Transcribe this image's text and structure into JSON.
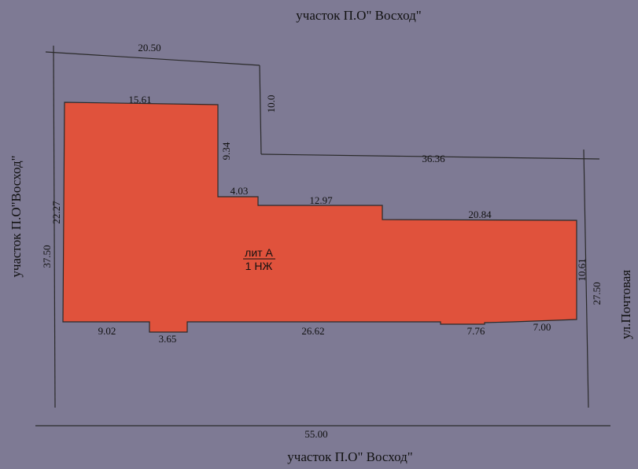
{
  "colors": {
    "background": "#7e7a94",
    "building_fill": "#e0523c",
    "line": "#2a2a2a"
  },
  "neighbors": {
    "top": "участок П.О\" Восход\"",
    "bottom": "участок П.О\" Восход\"",
    "left": "участок П.О\"Восход\"",
    "right": "ул.Почтовая"
  },
  "building": {
    "lit": "лит А",
    "type": "1 НЖ"
  },
  "dimensions": {
    "plot_top": "20.50",
    "plot_setback": "10.0",
    "plot_upper_right": "36.36",
    "plot_left": "37.50",
    "plot_right": "27.50",
    "plot_bottom": "55.00",
    "bldg_top": "15.61",
    "bldg_step1": "9.34",
    "bldg_step2": "4.03",
    "bldg_mid": "12.97",
    "bldg_right_top": "20.84",
    "bldg_right": "10.61",
    "bldg_left": "22.27",
    "bldg_bottom_1": "9.02",
    "bldg_bottom_2": "3.65",
    "bldg_bottom_3": "26.62",
    "bldg_bottom_4": "7.76",
    "bldg_bottom_5": "7.00"
  }
}
